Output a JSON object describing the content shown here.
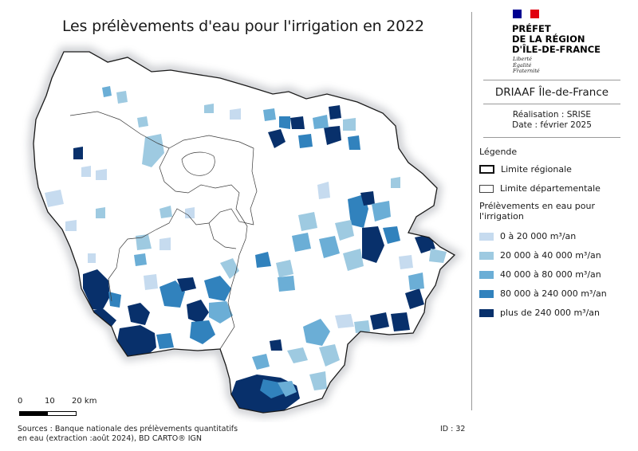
{
  "title": "Les prélèvements d'eau pour l'irrigation en 2022",
  "branding": {
    "line1": "PRÉFET",
    "line2": "DE LA RÉGION",
    "line3": "D'ÎLE-DE-FRANCE",
    "motto1": "Liberté",
    "motto2": "Égalité",
    "motto3": "Fraternité",
    "flag_colors": [
      "#000091",
      "#ffffff",
      "#e1000f"
    ]
  },
  "organization": "DRIAAF Île-de-France",
  "credits": {
    "realisation": "Réalisation : SRISE",
    "date": "Date : février 2025"
  },
  "legend": {
    "title": "Légende",
    "regional_limit": "Limite régionale",
    "departmental_limit": "Limite départementale",
    "classes_title": "Prélèvements en eau pour l'irrigation",
    "classes": [
      {
        "label": "0 à 20 000 m³/an",
        "color": "#c6dbef"
      },
      {
        "label": "20 000 à 40 000 m³/an",
        "color": "#9ecae1"
      },
      {
        "label": "40 000 à 80 000 m³/an",
        "color": "#6baed6"
      },
      {
        "label": "80 000 à 240 000 m³/an",
        "color": "#3182bd"
      },
      {
        "label": "plus de 240 000 m³/an",
        "color": "#08306b"
      }
    ]
  },
  "scale": {
    "tick0": "0",
    "tick1": "10",
    "tick2": "20 km"
  },
  "sources": {
    "line1": "Sources : Banque nationale des prélèvements quantitatifs",
    "line2": "en eau (extraction :août 2024), BD CARTO® IGN"
  },
  "map_id": "ID : 32"
}
